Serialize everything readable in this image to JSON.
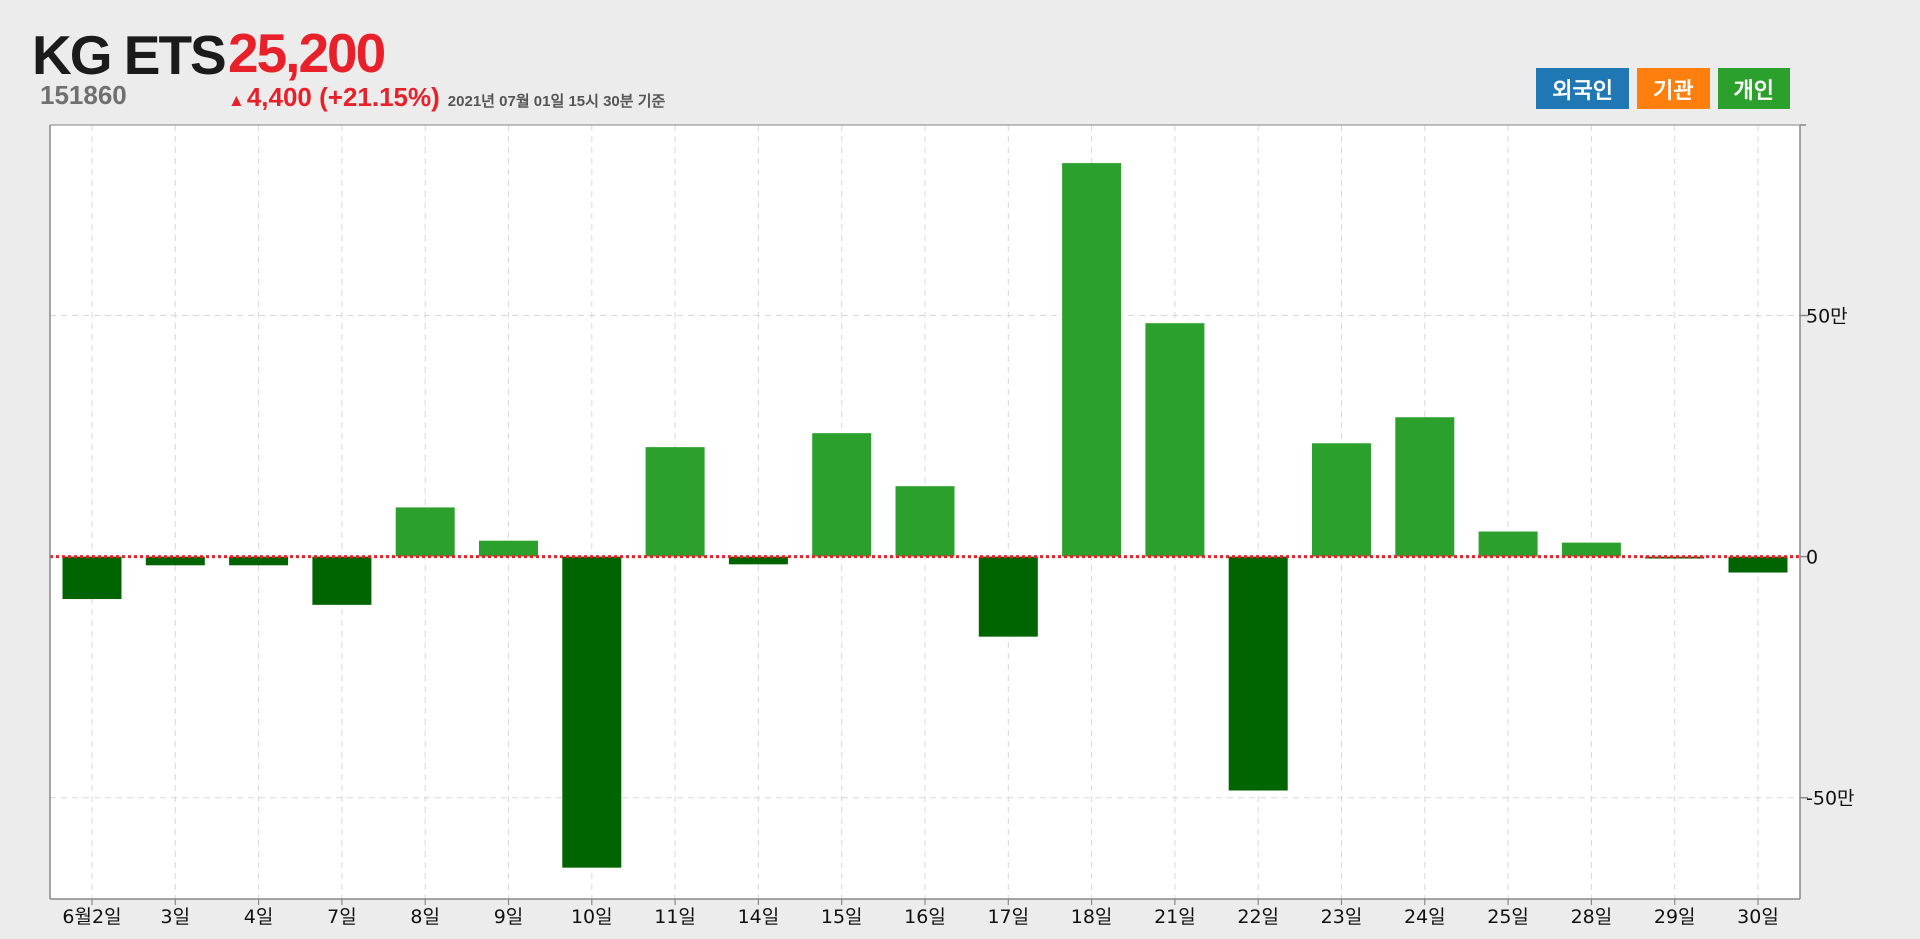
{
  "header": {
    "name": "KG ETS",
    "code": "151860",
    "price": "25,200",
    "change": "4,400 (+21.15%)",
    "timestamp": "2021년 07월 01일 15시 30분 기준"
  },
  "legend": {
    "foreign": "외국인",
    "institution": "기관",
    "individual": "개인"
  },
  "colors": {
    "positive_bar": "#2ca02c",
    "negative_bar": "#006400",
    "zero_line": "#e8202a",
    "price_up": "#e8202a"
  },
  "chart_data": {
    "type": "bar",
    "series_shown": "개인",
    "categories": [
      "6월2일",
      "3일",
      "4일",
      "7일",
      "8일",
      "9일",
      "10일",
      "11일",
      "14일",
      "15일",
      "16일",
      "17일",
      "18일",
      "21일",
      "22일",
      "23일",
      "24일",
      "25일",
      "28일",
      "29일",
      "30일"
    ],
    "values": [
      -88000,
      -18000,
      -18000,
      -100000,
      102000,
      33000,
      -645000,
      227000,
      -16000,
      256000,
      146000,
      -166000,
      816000,
      484000,
      -485000,
      235000,
      289000,
      52000,
      29000,
      -4000,
      -33000
    ],
    "ylim": [
      -710000,
      895000
    ],
    "yticks": [
      -500000,
      0,
      500000
    ],
    "ytick_labels": [
      "-50만",
      "0",
      "50만"
    ],
    "y_axis_side": "right",
    "grid": true,
    "zero_line": "dotted red"
  }
}
